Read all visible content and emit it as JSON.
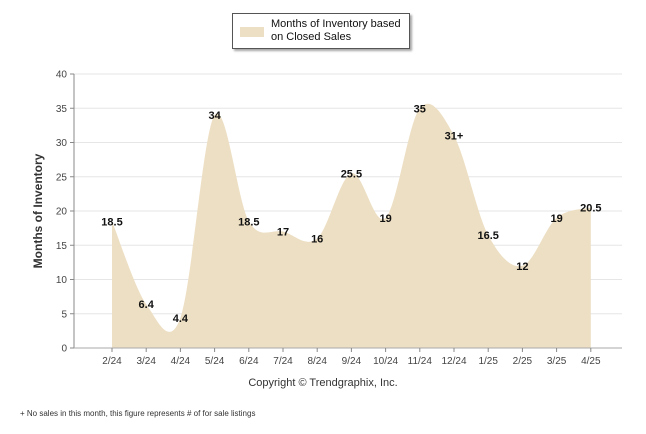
{
  "chart_data": {
    "type": "area",
    "categories": [
      "2/24",
      "3/24",
      "4/24",
      "5/24",
      "6/24",
      "7/24",
      "8/24",
      "9/24",
      "10/24",
      "11/24",
      "12/24",
      "1/25",
      "2/25",
      "3/25",
      "4/25"
    ],
    "series": [
      {
        "name": "Months of Inventory based on Closed Sales",
        "values": [
          18.5,
          6.4,
          4.4,
          34,
          18.5,
          17,
          16,
          25.5,
          19,
          35,
          31,
          16.5,
          12,
          19,
          20.5
        ],
        "data_labels": [
          "18.5",
          "6.4",
          "4.4",
          "34",
          "18.5",
          "17",
          "16",
          "25.5",
          "19",
          "35",
          "31+",
          "16.5",
          "12",
          "19",
          "20.5"
        ]
      }
    ],
    "ylabel": "Months of Inventory",
    "xlabel": "",
    "ylim": [
      0,
      40
    ],
    "yticks": [
      0,
      5,
      10,
      15,
      20,
      25,
      30,
      35,
      40
    ],
    "grid": true,
    "legend_position": "top-center",
    "fill_color": "#eddfc3",
    "grid_color": "#e6e6e6"
  },
  "legend": {
    "label": "Months of Inventory based on Closed Sales"
  },
  "copyright": "Copyright © Trendgraphix, Inc.",
  "footnote": "+ No sales in this month, this figure represents # of for sale listings"
}
